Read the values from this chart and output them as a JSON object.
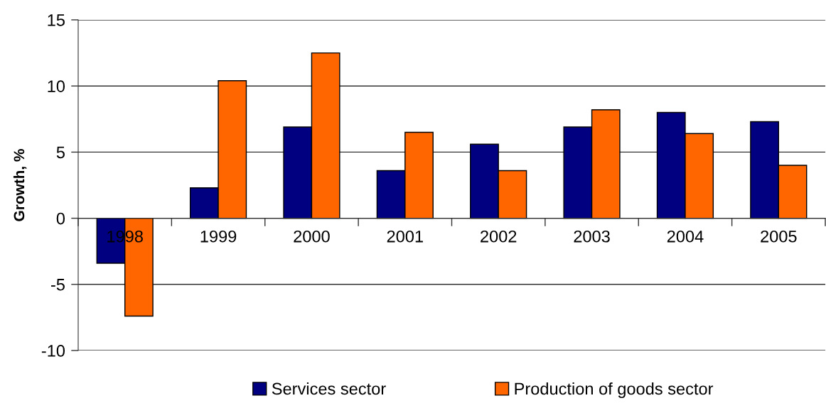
{
  "chart_data": {
    "type": "bar",
    "ylabel": "Growth, %",
    "categories": [
      "1998",
      "1999",
      "2000",
      "2001",
      "2002",
      "2003",
      "2004",
      "2005"
    ],
    "series": [
      {
        "name": "Services sector",
        "color": "#000080",
        "values": [
          -3.4,
          2.3,
          6.9,
          3.6,
          5.6,
          6.9,
          8.0,
          7.3
        ]
      },
      {
        "name": "Production of goods sector",
        "color": "#ff6600",
        "values": [
          -7.4,
          10.4,
          12.5,
          6.5,
          3.6,
          8.2,
          6.4,
          4.0
        ]
      }
    ],
    "ylim": [
      -10,
      15
    ],
    "yticks": [
      -10,
      -5,
      0,
      5,
      10,
      15
    ],
    "grid": "y",
    "legend": "bottom"
  }
}
